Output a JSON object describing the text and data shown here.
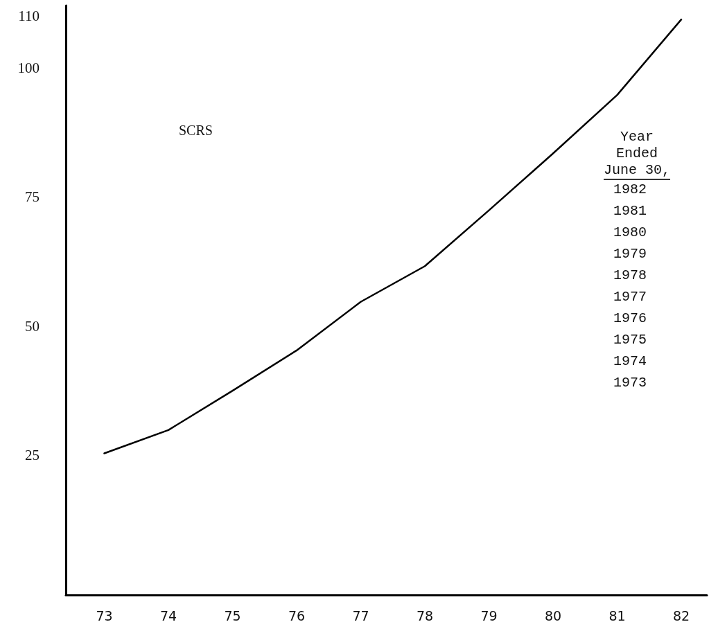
{
  "chart_data": {
    "type": "line",
    "x": [
      73,
      74,
      75,
      76,
      77,
      78,
      79,
      80,
      81,
      82
    ],
    "values": [
      25.4,
      29.9,
      37.5,
      45.3,
      54.7,
      61.6,
      72.4,
      83.4,
      94.7,
      109.3
    ],
    "color": "#000000",
    "xlim": [
      72.4,
      82.4
    ],
    "xticks": [
      73,
      74,
      75,
      76,
      77,
      78,
      79,
      80,
      81,
      82
    ],
    "ylim": [
      -2,
      112
    ],
    "yticks": [
      25,
      50,
      75,
      100,
      110
    ],
    "grid": false,
    "marker": "none",
    "line_style": "solid",
    "annotations": [
      "SCRS",
      "Year\nEnded\nJune 30,",
      "1982",
      "1981",
      "1980",
      "1979",
      "1978",
      "1977",
      "1976",
      "1975",
      "1974",
      "1973"
    ]
  }
}
